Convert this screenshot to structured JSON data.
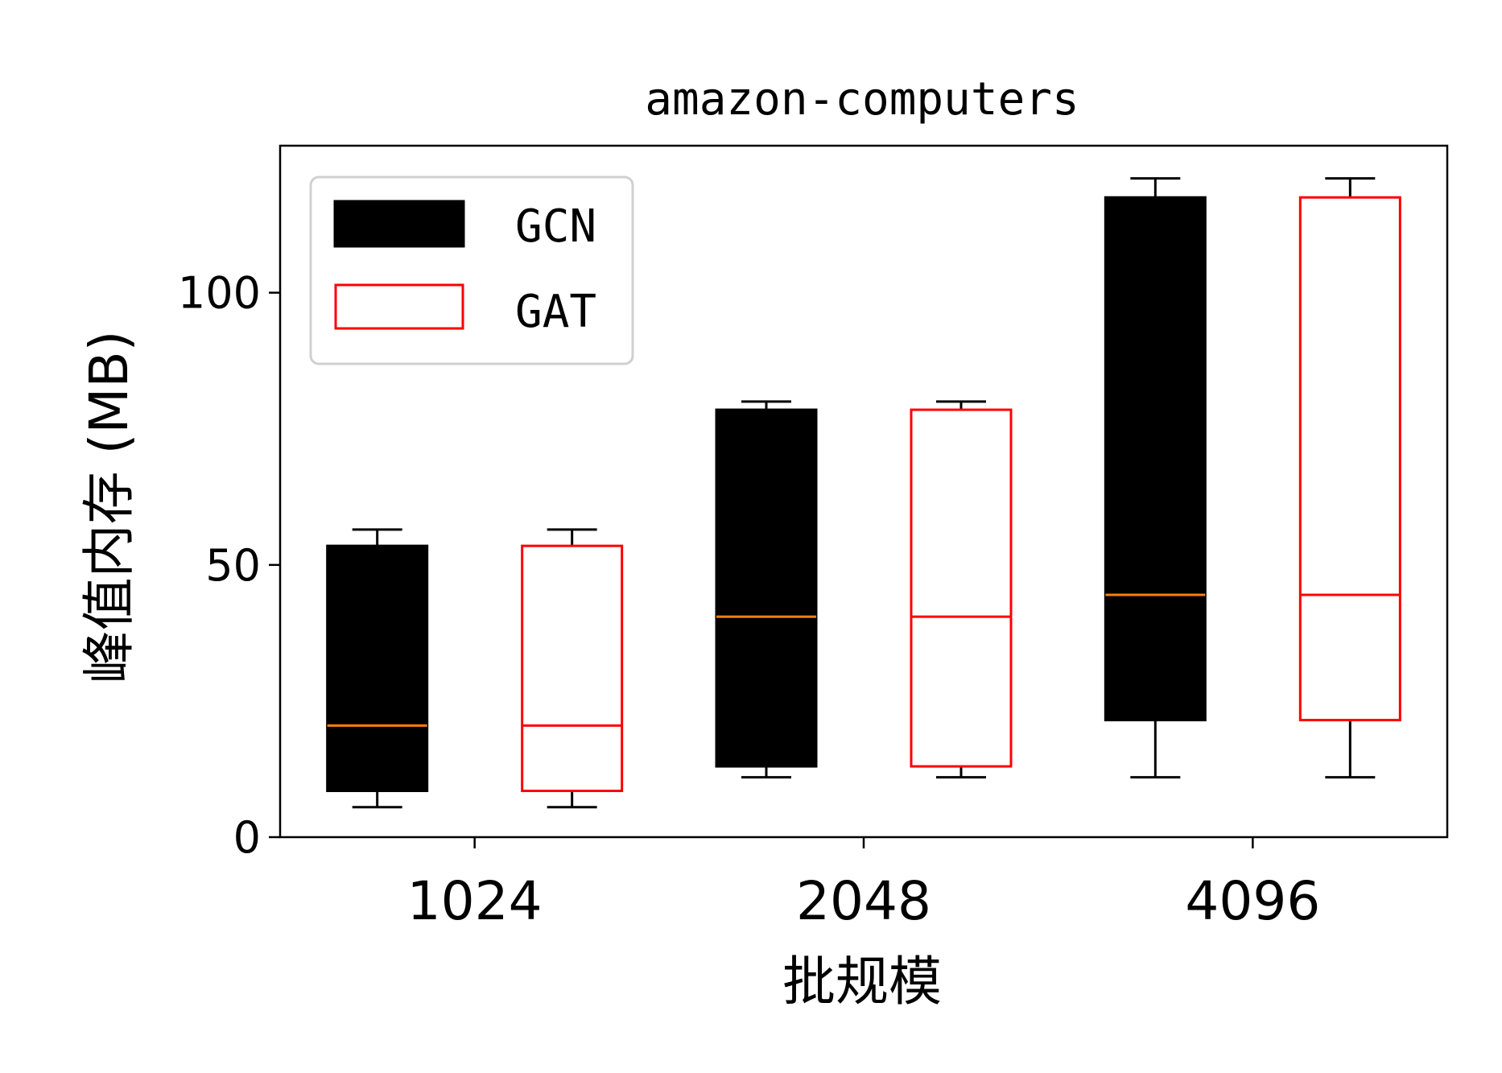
{
  "chart_data": {
    "type": "box",
    "title": "amazon-computers",
    "xlabel": "批规模",
    "ylabel": "峰值内存 (MB)",
    "categories": [
      "1024",
      "2048",
      "4096"
    ],
    "ylim": [
      0,
      127
    ],
    "yticks": [
      0,
      50,
      100
    ],
    "legend_position": "top-left",
    "series": [
      {
        "name": "GCN",
        "style": "filled",
        "face_color": "#000000",
        "edge_color": "#000000",
        "median_color": "#ff7f0e",
        "boxes": [
          {
            "whisker_low": 5.5,
            "q1": 8.5,
            "median": 20.5,
            "q3": 53.5,
            "whisker_high": 56.5
          },
          {
            "whisker_low": 11,
            "q1": 13,
            "median": 40.5,
            "q3": 78.5,
            "whisker_high": 80
          },
          {
            "whisker_low": 11,
            "q1": 21.5,
            "median": 44.5,
            "q3": 117.5,
            "whisker_high": 121
          }
        ]
      },
      {
        "name": "GAT",
        "style": "outline",
        "face_color": "#ffffff",
        "edge_color": "#ff0000",
        "median_color": "#ff0000",
        "boxes": [
          {
            "whisker_low": 5.5,
            "q1": 8.5,
            "median": 20.5,
            "q3": 53.5,
            "whisker_high": 56.5
          },
          {
            "whisker_low": 11,
            "q1": 13,
            "median": 40.5,
            "q3": 78.5,
            "whisker_high": 80
          },
          {
            "whisker_low": 11,
            "q1": 21.5,
            "median": 44.5,
            "q3": 117.5,
            "whisker_high": 121
          }
        ]
      }
    ]
  }
}
